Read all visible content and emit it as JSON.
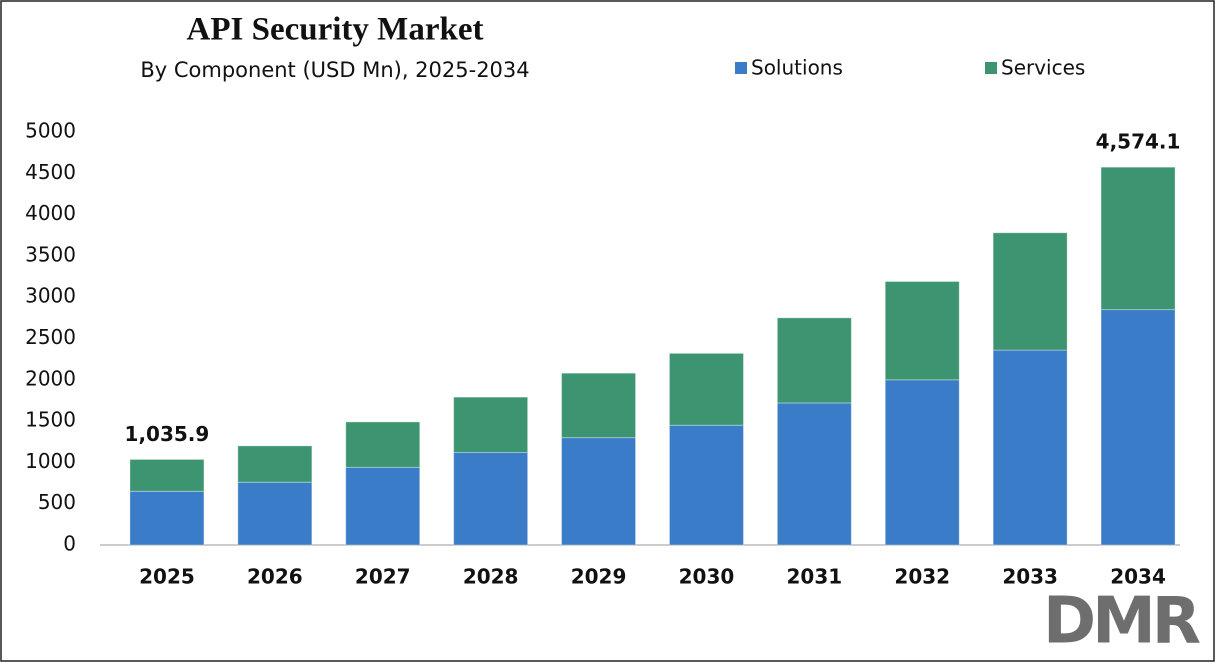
{
  "chart_data": {
    "type": "stacked_bar",
    "title": "API Security Market",
    "subtitle": "By Component (USD Mn), 2025-2034",
    "categories": [
      "2025",
      "2026",
      "2027",
      "2028",
      "2029",
      "2030",
      "2031",
      "2032",
      "2033",
      "2034"
    ],
    "series": [
      {
        "name": "Solutions",
        "color": "#3a7cc8",
        "values": [
          650,
          760,
          940,
          1120,
          1300,
          1450,
          1720,
          2000,
          2360,
          2850
        ]
      },
      {
        "name": "Services",
        "color": "#3d9470",
        "values": [
          385.9,
          440,
          550,
          670,
          780,
          870,
          1030,
          1190,
          1420,
          1724.1
        ]
      }
    ],
    "annotations": [
      {
        "category": "2025",
        "value": 1035.9,
        "text": "1,035.9"
      },
      {
        "category": "2034",
        "value": 4574.1,
        "text": "4,574.1"
      }
    ],
    "ylim": [
      0,
      5000
    ],
    "yticks": [
      0,
      500,
      1000,
      1500,
      2000,
      2500,
      3000,
      3500,
      4000,
      4500,
      5000
    ],
    "grid": false,
    "legend": "top"
  },
  "logo": "DMR"
}
